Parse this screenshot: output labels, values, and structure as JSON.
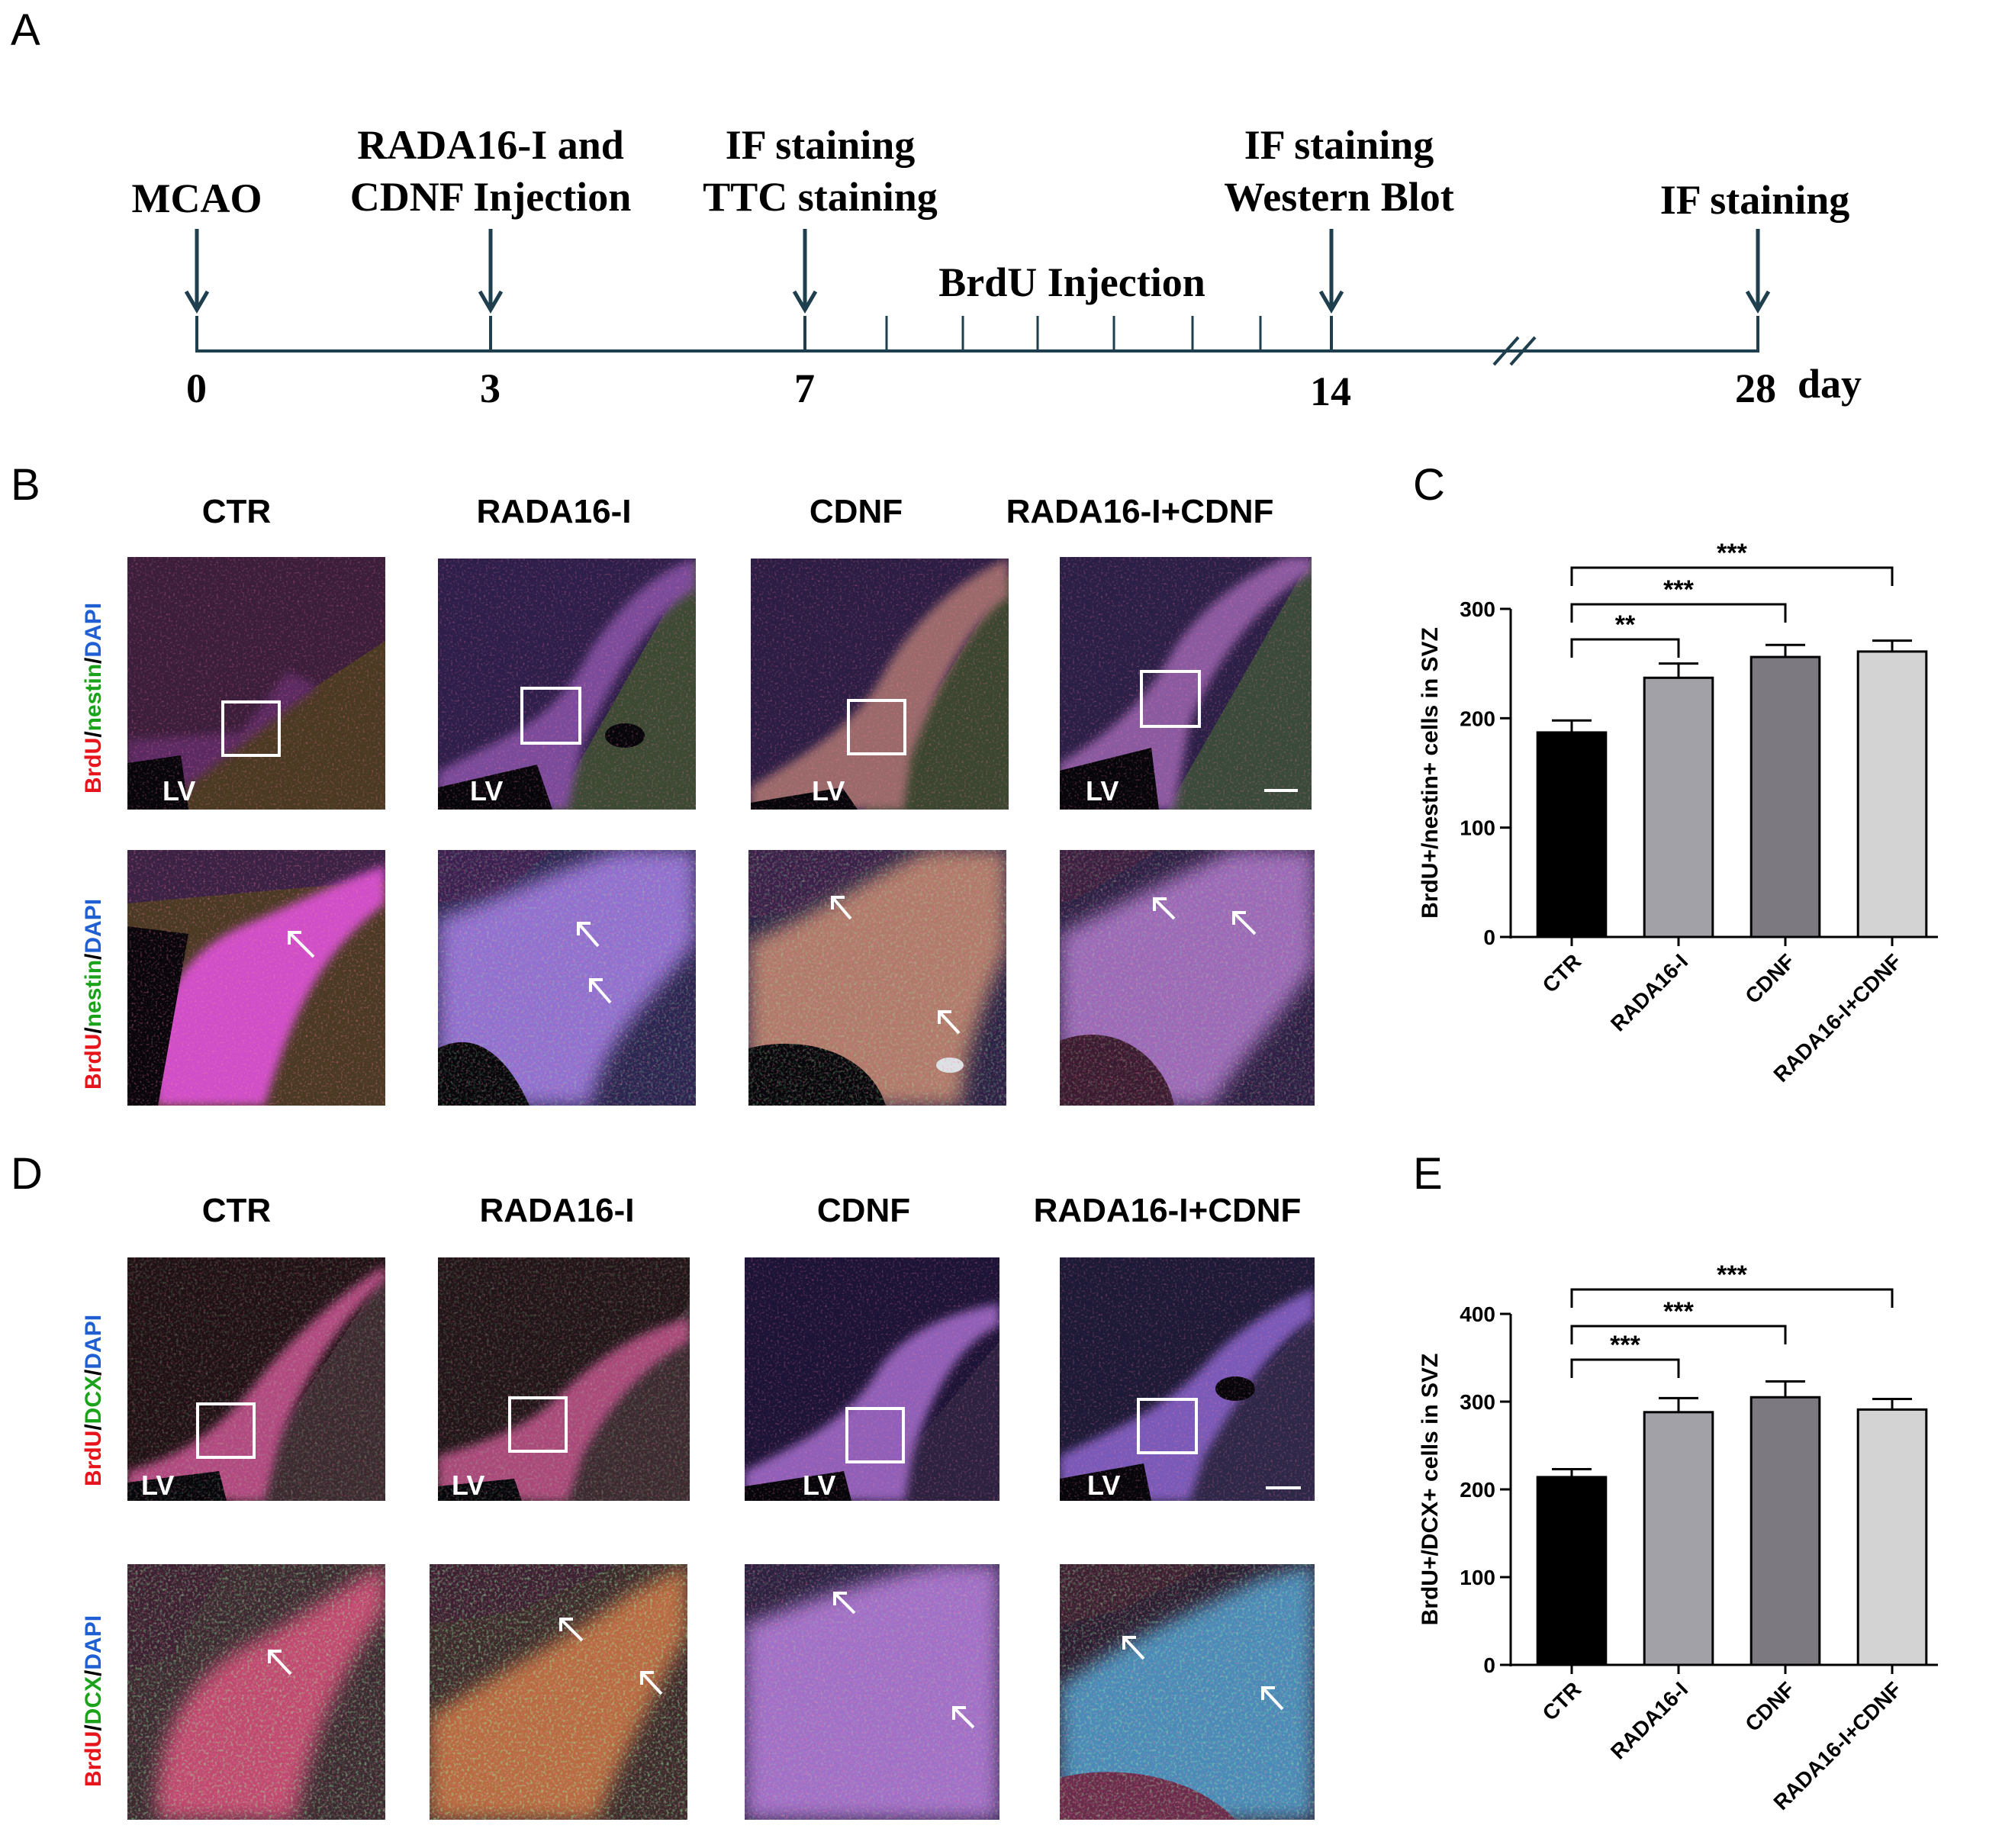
{
  "panel_letters": {
    "a": "A",
    "b": "B",
    "c": "C",
    "d": "D",
    "e": "E"
  },
  "timeline": {
    "events": [
      {
        "lines": [
          "MCAO"
        ]
      },
      {
        "lines": [
          "RADA16-I and",
          "CDNF Injection"
        ]
      },
      {
        "lines": [
          "IF staining",
          "TTC staining"
        ]
      },
      {
        "lines": [
          "IF staining",
          "Western Blot"
        ]
      },
      {
        "lines": [
          "IF staining"
        ]
      }
    ],
    "brdu_label": "BrdU Injection",
    "day_ticks": [
      "0",
      "3",
      "7",
      "14",
      "28"
    ],
    "unit": "day",
    "colors": {
      "line": "#1f3f4e",
      "arrow": "#1f3f4e"
    }
  },
  "micro_panels": {
    "group_titles": [
      "CTR",
      "RADA16-I",
      "CDNF",
      "RADA16-I+CDNF"
    ],
    "lv_label": "LV",
    "stain_b": {
      "parts": [
        "BrdU",
        "/",
        "nestin",
        "/",
        "DAPI"
      ]
    },
    "stain_d": {
      "parts": [
        "BrdU",
        "/",
        "DCX",
        "/",
        "DAPI"
      ]
    },
    "stain_colors": [
      "#e8141b",
      "#000000",
      "#1aa31a",
      "#000000",
      "#1f5fd1"
    ]
  },
  "chart_data": [
    {
      "type": "bar",
      "panel": "C",
      "categories": [
        "CTR",
        "RADA16-I",
        "CDNF",
        "RADA16-I+CDNF"
      ],
      "values": [
        187,
        237,
        256,
        261
      ],
      "errors": [
        11,
        13,
        11,
        10
      ],
      "ylabel": "BrdU+/nestin+ cells in SVZ",
      "xlabel": "",
      "ylim": [
        0,
        300
      ],
      "yticks": [
        0,
        100,
        200,
        300
      ],
      "bar_colors": [
        "#000000",
        "#a3a1a8",
        "#7c7a80",
        "#d3d3d3"
      ],
      "significance": [
        {
          "from": 0,
          "to": 1,
          "label": "**"
        },
        {
          "from": 0,
          "to": 2,
          "label": "***"
        },
        {
          "from": 0,
          "to": 3,
          "label": "***"
        }
      ]
    },
    {
      "type": "bar",
      "panel": "E",
      "categories": [
        "CTR",
        "RADA16-I",
        "CDNF",
        "RADA16-I+CDNF"
      ],
      "values": [
        214,
        288,
        305,
        291
      ],
      "errors": [
        9,
        16,
        18,
        12
      ],
      "ylabel": "BrdU+/DCX+ cells in SVZ",
      "xlabel": "",
      "ylim": [
        0,
        400
      ],
      "yticks": [
        0,
        100,
        200,
        300,
        400
      ],
      "bar_colors": [
        "#000000",
        "#a3a1a8",
        "#7c7a80",
        "#d3d3d3"
      ],
      "significance": [
        {
          "from": 0,
          "to": 1,
          "label": "***"
        },
        {
          "from": 0,
          "to": 2,
          "label": "***"
        },
        {
          "from": 0,
          "to": 3,
          "label": "***"
        }
      ]
    }
  ]
}
